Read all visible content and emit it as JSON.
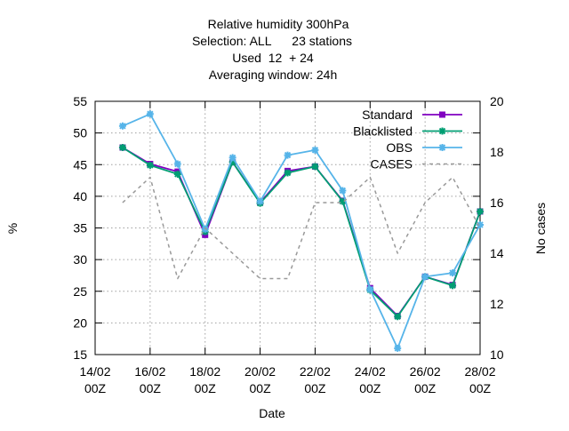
{
  "chart_data": {
    "type": "line",
    "title_lines": [
      "Relative humidity 300hPa",
      "Selection: ALL      23 stations",
      "Used  12  + 24",
      "Averaging window: 24h"
    ],
    "xlabel": "Date",
    "ylabel": "%",
    "y2label": "No cases",
    "x_ticks": [
      {
        "x": 0,
        "line1": "14/02",
        "line2": "00Z"
      },
      {
        "x": 2,
        "line1": "16/02",
        "line2": "00Z"
      },
      {
        "x": 4,
        "line1": "18/02",
        "line2": "00Z"
      },
      {
        "x": 6,
        "line1": "20/02",
        "line2": "00Z"
      },
      {
        "x": 8,
        "line1": "22/02",
        "line2": "00Z"
      },
      {
        "x": 10,
        "line1": "24/02",
        "line2": "00Z"
      },
      {
        "x": 12,
        "line1": "26/02",
        "line2": "00Z"
      },
      {
        "x": 14,
        "line1": "28/02",
        "line2": "00Z"
      }
    ],
    "xlim": [
      0,
      14
    ],
    "ylim": [
      15,
      55
    ],
    "y_ticks": [
      15,
      20,
      25,
      30,
      35,
      40,
      45,
      50,
      55
    ],
    "y2lim": [
      10,
      20
    ],
    "y2_ticks": [
      10,
      12,
      14,
      16,
      18,
      20
    ],
    "grid": true,
    "legend_position": "top-right",
    "series": [
      {
        "name": "Standard",
        "axis": "y",
        "color": "#8000c0",
        "dash": false,
        "marker": "square",
        "x": [
          1,
          2,
          3,
          4,
          5,
          6,
          7,
          8,
          9,
          10,
          11,
          12,
          13,
          14
        ],
        "values": [
          47.7,
          45.1,
          43.9,
          33.9,
          45.4,
          39.0,
          44.0,
          44.7,
          39.3,
          25.5,
          21.1,
          27.3,
          26.0,
          37.6
        ]
      },
      {
        "name": "Blacklisted",
        "axis": "y",
        "color": "#009e73",
        "dash": false,
        "marker": "star",
        "x": [
          1,
          2,
          3,
          4,
          5,
          6,
          7,
          8,
          9,
          10,
          11,
          12,
          13,
          14
        ],
        "values": [
          47.7,
          44.9,
          43.5,
          34.4,
          45.4,
          38.9,
          43.7,
          44.7,
          39.2,
          25.2,
          21.0,
          27.3,
          25.9,
          37.6
        ]
      },
      {
        "name": "OBS",
        "axis": "y",
        "color": "#56b4e9",
        "dash": false,
        "marker": "star",
        "x": [
          1,
          2,
          3,
          4,
          5,
          6,
          7,
          8,
          9,
          10,
          11,
          12,
          13,
          14
        ],
        "values": [
          51.1,
          53.0,
          45.1,
          34.8,
          46.1,
          39.2,
          46.5,
          47.3,
          40.9,
          25.3,
          16.0,
          27.3,
          27.9,
          35.5
        ]
      },
      {
        "name": "CASES",
        "axis": "y2",
        "color": "#999999",
        "dash": true,
        "marker": "none",
        "x": [
          1,
          2,
          3,
          4,
          5,
          6,
          7,
          8,
          9,
          10,
          11,
          12,
          13,
          14
        ],
        "values": [
          16,
          17,
          13,
          15,
          14,
          13,
          13,
          16,
          16,
          17,
          14,
          16,
          17,
          15
        ]
      }
    ]
  }
}
